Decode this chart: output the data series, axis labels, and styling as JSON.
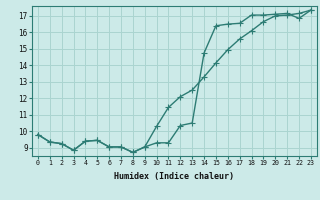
{
  "xlabel": "Humidex (Indice chaleur)",
  "background_color": "#cceae8",
  "grid_color": "#aad4d0",
  "line_color": "#2d7c74",
  "xlim": [
    -0.5,
    23.5
  ],
  "ylim": [
    8.5,
    17.6
  ],
  "xticks": [
    0,
    1,
    2,
    3,
    4,
    5,
    6,
    7,
    8,
    9,
    10,
    11,
    12,
    13,
    14,
    15,
    16,
    17,
    18,
    19,
    20,
    21,
    22,
    23
  ],
  "yticks": [
    9,
    10,
    11,
    12,
    13,
    14,
    15,
    16,
    17
  ],
  "line1_x": [
    0,
    1,
    2,
    3,
    4,
    5,
    6,
    7,
    8,
    9,
    10,
    11,
    12,
    13,
    14,
    15,
    16,
    17,
    18,
    19,
    20,
    21,
    22,
    23
  ],
  "line1_y": [
    9.8,
    9.35,
    9.25,
    8.85,
    9.4,
    9.45,
    9.05,
    9.05,
    8.72,
    9.05,
    9.3,
    9.3,
    10.35,
    10.5,
    14.75,
    16.4,
    16.5,
    16.55,
    17.05,
    17.05,
    17.1,
    17.15,
    16.85,
    17.35
  ],
  "line2_x": [
    0,
    1,
    2,
    3,
    4,
    5,
    6,
    7,
    8,
    9,
    10,
    11,
    12,
    13,
    14,
    15,
    16,
    17,
    18,
    19,
    20,
    21,
    22,
    23
  ],
  "line2_y": [
    9.8,
    9.35,
    9.25,
    8.85,
    9.4,
    9.45,
    9.05,
    9.05,
    8.72,
    9.05,
    10.3,
    11.45,
    12.1,
    12.5,
    13.3,
    14.15,
    14.95,
    15.6,
    16.1,
    16.65,
    17.0,
    17.05,
    17.15,
    17.35
  ]
}
